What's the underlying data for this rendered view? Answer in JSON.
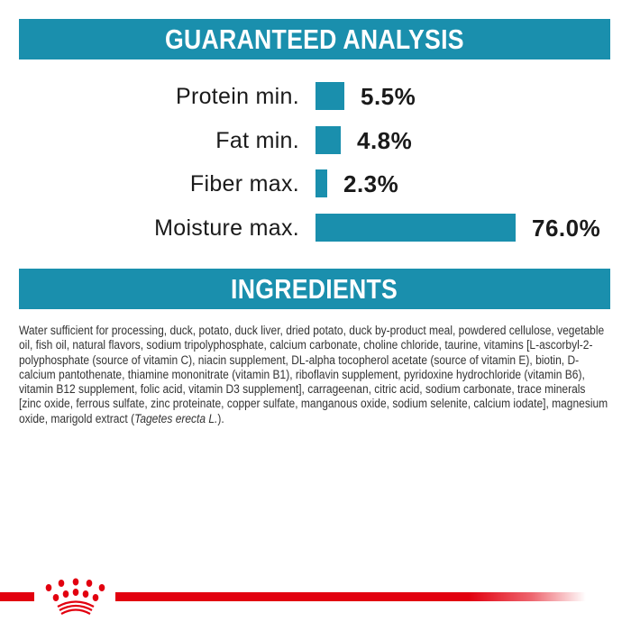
{
  "analysis": {
    "title": "GUARANTEED ANALYSIS",
    "bar_color": "#1a8fad",
    "items": [
      {
        "label": "Protein min.",
        "value": "5.5%",
        "percent": 5.5
      },
      {
        "label": "Fat min.",
        "value": "4.8%",
        "percent": 4.8
      },
      {
        "label": "Fiber max.",
        "value": "2.3%",
        "percent": 2.3
      },
      {
        "label": "Moisture max.",
        "value": "76.0%",
        "percent": 76.0
      }
    ]
  },
  "ingredients": {
    "title": "INGREDIENTS",
    "text": "Water sufficient for processing, duck, potato, duck liver, dried potato, duck by-product meal, powdered cellulose, vegetable oil, fish oil, natural flavors, sodium tripolyphosphate, calcium carbonate, choline chloride, taurine, vitamins [L-ascorbyl-2-polyphosphate (source of vitamin C), niacin supplement, DL-alpha tocopherol acetate (source of vitamin E), biotin, D-calcium pantothenate, thiamine mononitrate (vitamin B1), riboflavin supplement, pyridoxine hydrochloride (vitamin B6), vitamin B12 supplement, folic acid, vitamin D3 supplement], carrageenan, citric acid, sodium carbonate, trace minerals [zinc oxide, ferrous sulfate, zinc proteinate, copper sulfate, manganous oxide, sodium selenite, calcium iodate], magnesium oxide, marigold extract (",
    "italic": "Tagetes erecta L.",
    "end": ")."
  },
  "footer": {
    "logo": "royal-canin-crown-icon",
    "accent_color": "#e2000f"
  }
}
